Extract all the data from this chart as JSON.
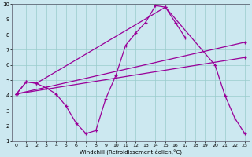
{
  "xlabel": "Windchill (Refroidissement éolien,°C)",
  "xlim": [
    -0.5,
    23.5
  ],
  "ylim": [
    1,
    10
  ],
  "bg_color": "#cce8f0",
  "line_color": "#990099",
  "grid_color": "#99cccc",
  "series1_x": [
    0,
    1,
    2,
    3,
    4,
    5,
    6,
    7,
    8,
    9,
    10,
    11,
    12,
    13,
    14,
    15,
    16,
    17
  ],
  "series1_y": [
    4.1,
    4.9,
    4.8,
    4.5,
    4.1,
    3.3,
    2.2,
    1.5,
    1.7,
    3.8,
    5.3,
    7.3,
    8.1,
    8.8,
    9.9,
    9.8,
    8.8,
    7.8
  ],
  "series2_x": [
    0,
    1,
    2,
    15,
    20,
    21,
    22,
    23
  ],
  "series2_y": [
    4.1,
    4.9,
    4.8,
    9.8,
    6.0,
    4.0,
    2.5,
    1.5
  ],
  "series3_x": [
    0,
    23
  ],
  "series3_y": [
    4.1,
    7.5
  ],
  "series4_x": [
    0,
    23
  ],
  "series4_y": [
    4.1,
    6.5
  ]
}
